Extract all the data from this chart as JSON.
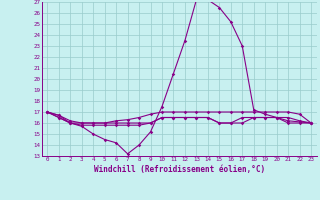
{
  "xlabel": "Windchill (Refroidissement éolien,°C)",
  "xlim": [
    -0.5,
    23.5
  ],
  "ylim": [
    13,
    27
  ],
  "yticks": [
    13,
    14,
    15,
    16,
    17,
    18,
    19,
    20,
    21,
    22,
    23,
    24,
    25,
    26,
    27
  ],
  "xticks": [
    0,
    1,
    2,
    3,
    4,
    5,
    6,
    7,
    8,
    9,
    10,
    11,
    12,
    13,
    14,
    15,
    16,
    17,
    18,
    19,
    20,
    21,
    22,
    23
  ],
  "bg_color": "#c8f0f0",
  "line_color": "#880088",
  "grid_color": "#99cccc",
  "series": [
    [
      17.0,
      16.7,
      16.0,
      15.7,
      15.0,
      14.5,
      14.2,
      13.2,
      14.0,
      15.2,
      17.5,
      20.5,
      23.5,
      27.2,
      27.2,
      26.5,
      25.2,
      23.0,
      17.2,
      16.8,
      16.5,
      16.2,
      16.1,
      16.0
    ],
    [
      17.0,
      16.7,
      16.2,
      16.0,
      16.0,
      16.0,
      16.2,
      16.3,
      16.5,
      16.8,
      17.0,
      17.0,
      17.0,
      17.0,
      17.0,
      17.0,
      17.0,
      17.0,
      17.0,
      17.0,
      17.0,
      17.0,
      16.8,
      16.0
    ],
    [
      17.0,
      16.5,
      16.0,
      16.0,
      16.0,
      16.0,
      16.0,
      16.0,
      16.0,
      16.0,
      16.5,
      16.5,
      16.5,
      16.5,
      16.5,
      16.0,
      16.0,
      16.5,
      16.5,
      16.5,
      16.5,
      16.5,
      16.2,
      16.0
    ],
    [
      17.0,
      16.5,
      16.0,
      15.8,
      15.8,
      15.8,
      15.8,
      15.8,
      15.8,
      16.0,
      16.5,
      16.5,
      16.5,
      16.5,
      16.5,
      16.0,
      16.0,
      16.0,
      16.5,
      16.5,
      16.5,
      16.0,
      16.0,
      16.0
    ]
  ]
}
